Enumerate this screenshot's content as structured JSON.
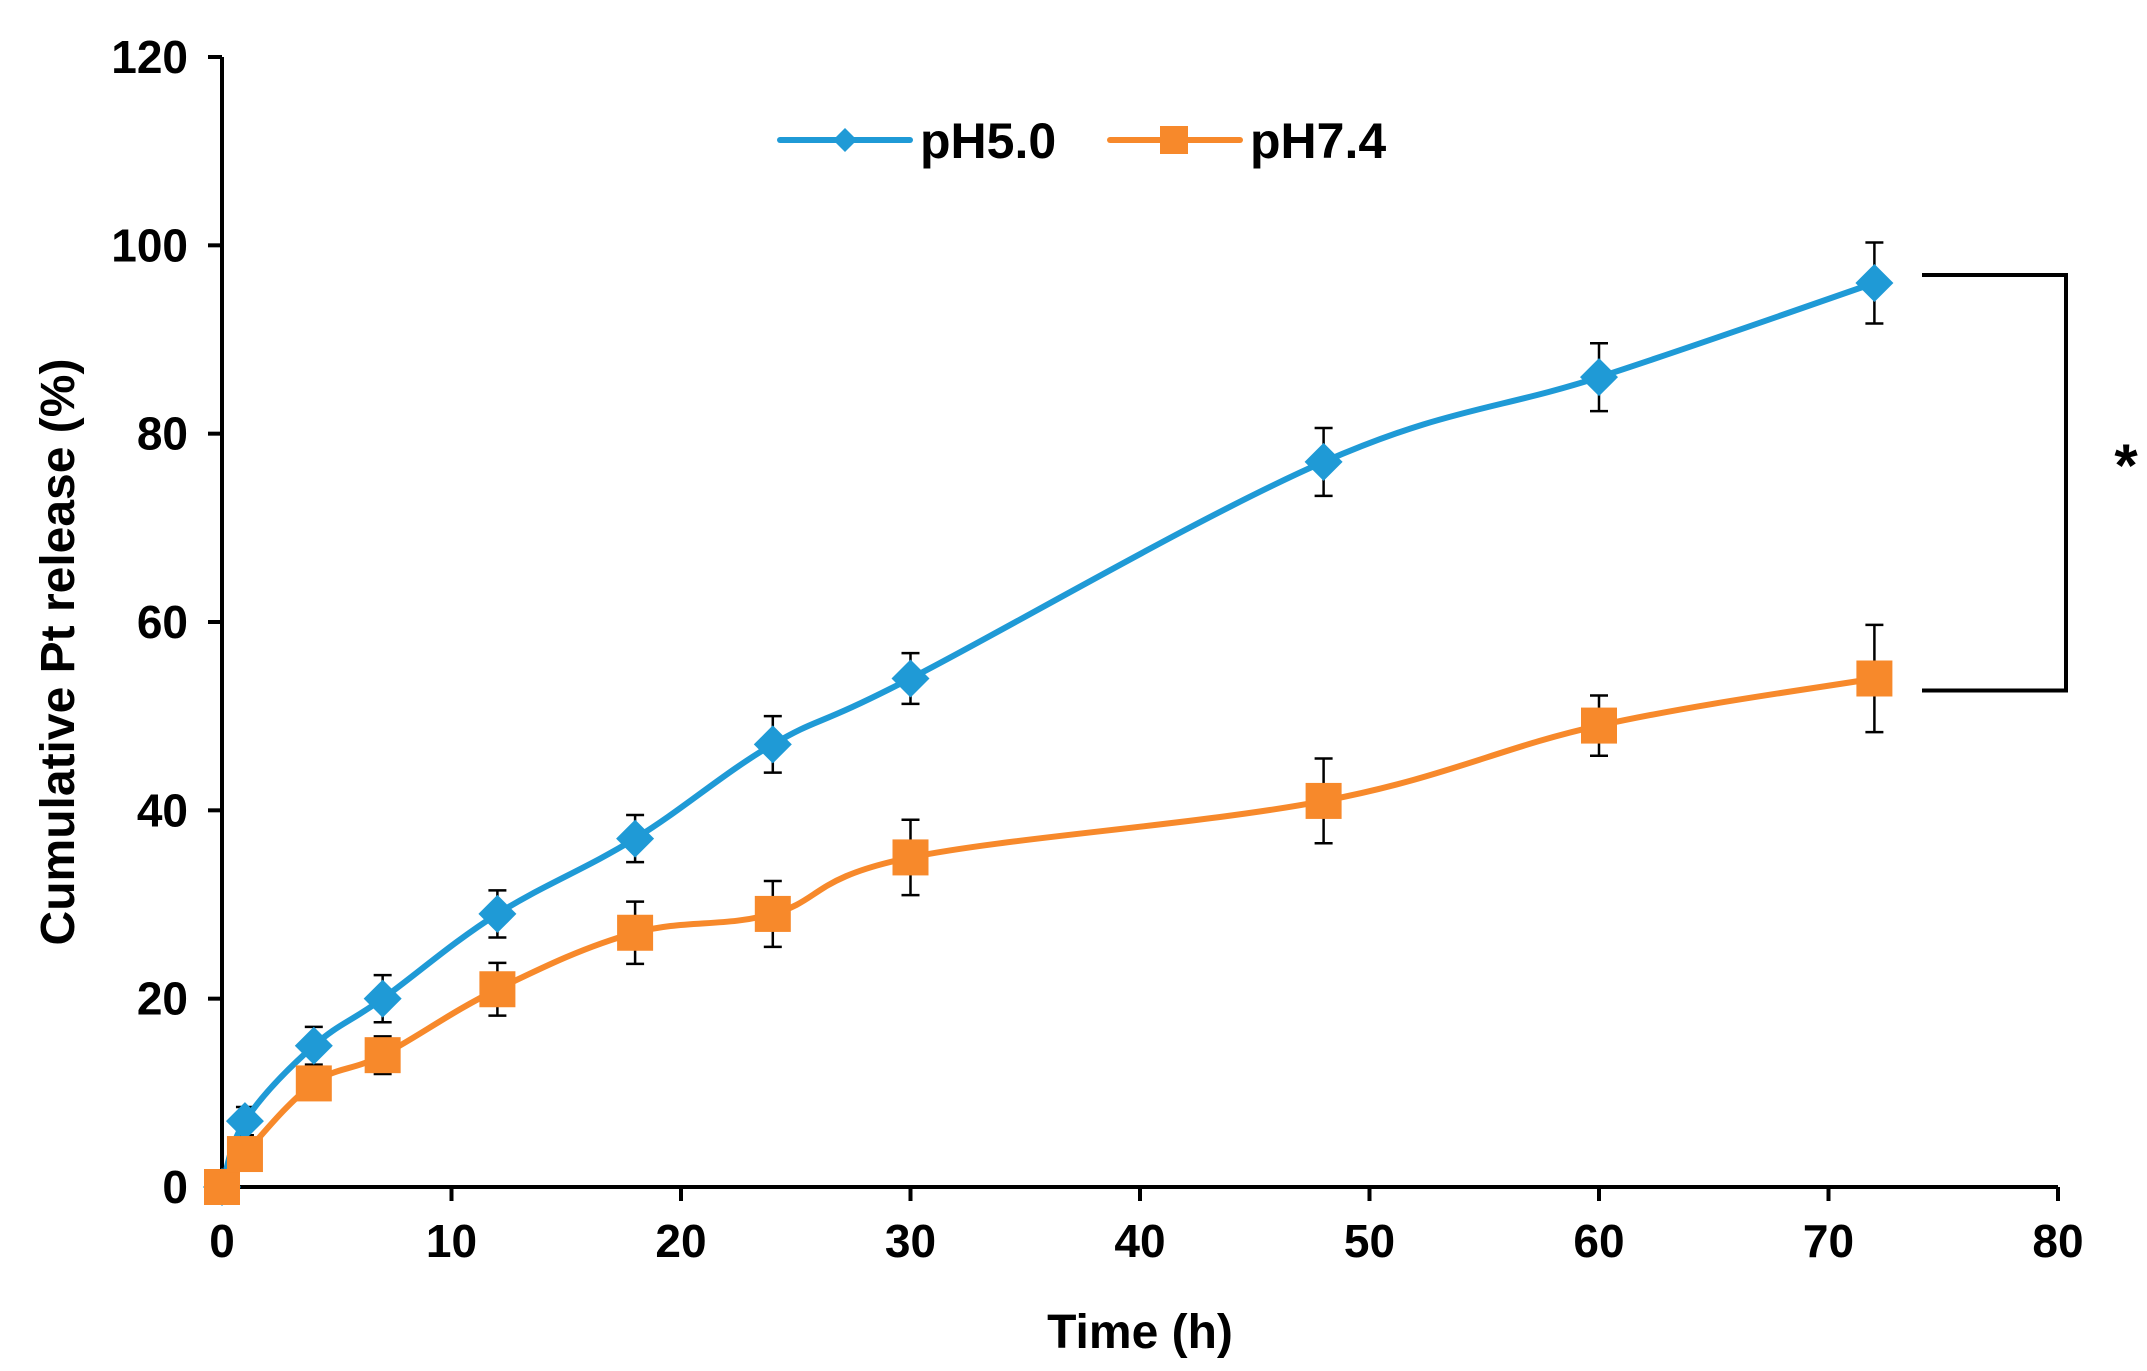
{
  "chart_data": {
    "type": "line",
    "title": "",
    "xlabel": "Time (h)",
    "ylabel": "Cumulative Pt release (%)",
    "xlim": [
      0,
      80
    ],
    "ylim": [
      0,
      120
    ],
    "x_ticks": [
      0,
      10,
      20,
      30,
      40,
      50,
      60,
      70,
      80
    ],
    "y_ticks": [
      0,
      20,
      40,
      60,
      80,
      100,
      120
    ],
    "legend_position": "top-center",
    "significance_label": "*",
    "series": [
      {
        "name": "pH5.0",
        "color": "#1F9AD6",
        "marker": "diamond",
        "x": [
          0,
          1,
          4,
          7,
          12,
          18,
          24,
          30,
          48,
          60,
          72
        ],
        "values": [
          0,
          7,
          15,
          20,
          29,
          37,
          47,
          54,
          77,
          86,
          96
        ],
        "errors": [
          0,
          1.5,
          2,
          2.5,
          2.5,
          2.5,
          3,
          2.7,
          3.6,
          3.6,
          4.3
        ]
      },
      {
        "name": "pH7.4",
        "color": "#F7892B",
        "marker": "square",
        "x": [
          0,
          1,
          4,
          7,
          12,
          18,
          24,
          30,
          48,
          60,
          72
        ],
        "values": [
          0,
          3.5,
          11,
          14,
          21,
          27,
          29,
          35,
          41,
          49,
          54
        ],
        "errors": [
          0,
          1,
          1.5,
          2,
          2.8,
          3.3,
          3.5,
          4,
          4.5,
          3.2,
          5.7
        ]
      }
    ]
  }
}
